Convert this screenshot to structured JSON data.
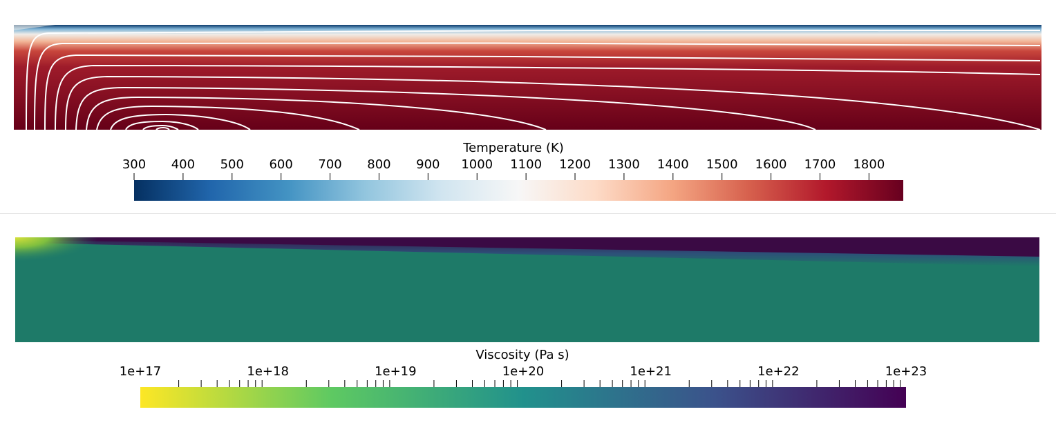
{
  "temperature_panel": {
    "title": "Temperature (K)",
    "tick_labels": [
      "300",
      "400",
      "500",
      "600",
      "700",
      "800",
      "900",
      "1000",
      "1100",
      "1200",
      "1300",
      "1400",
      "1500",
      "1600",
      "1700",
      "1800"
    ],
    "range": [
      300,
      1870
    ],
    "colormap": [
      "#053061",
      "#2166ac",
      "#4393c3",
      "#92c5de",
      "#d1e5f0",
      "#f7f7f7",
      "#fddbc7",
      "#f4a582",
      "#d6604d",
      "#b2182b",
      "#67001f"
    ],
    "streamline_color": "#ffffff"
  },
  "viscosity_panel": {
    "title": "Viscosity (Pa s)",
    "tick_labels": [
      "1e+17",
      "1e+18",
      "1e+19",
      "1e+20",
      "1e+21",
      "1e+22",
      "1e+23"
    ],
    "log_scale": true,
    "range": [
      1e+17,
      1e+23
    ],
    "colormap": [
      "#fde725",
      "#5ec962",
      "#21918c",
      "#3b528b",
      "#440154"
    ],
    "field_colors": {
      "lithosphere": "#3a0a44",
      "mantle": "#1e7a68",
      "corner": "#7fbf3f"
    }
  }
}
